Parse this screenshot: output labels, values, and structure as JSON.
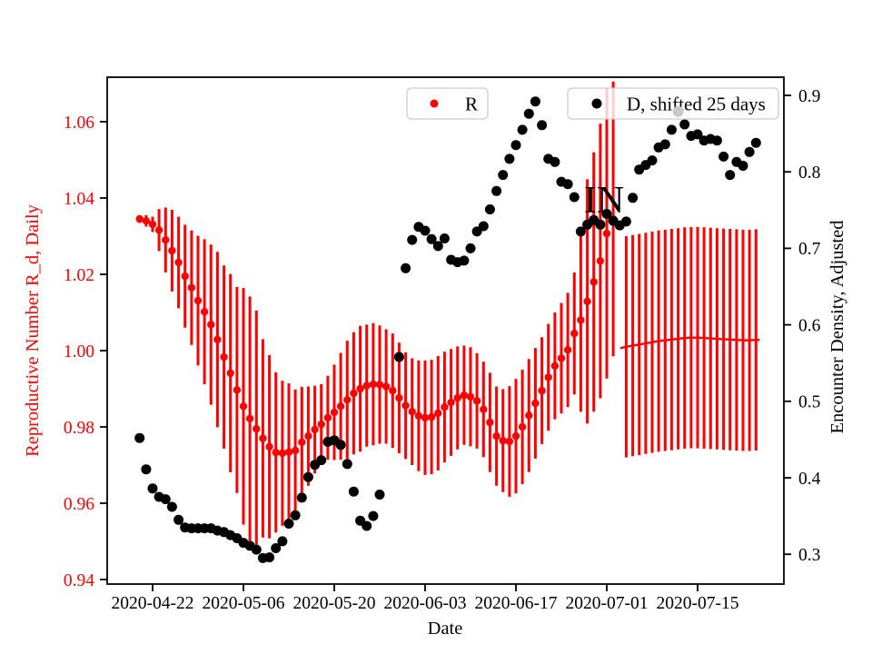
{
  "chart_data": {
    "type": "scatter",
    "title": "",
    "xlabel": "Date",
    "ylabel_left": "Reproductive Number R_d, Daily",
    "ylabel_right": "Encounter Density, Adjusted",
    "axes": {
      "x_tick_labels": [
        "2020-04-22",
        "2020-05-06",
        "2020-05-20",
        "2020-06-03",
        "2020-06-17",
        "2020-07-01",
        "2020-07-15"
      ],
      "left_tick_labels": [
        "0.94",
        "0.96",
        "0.98",
        "1.00",
        "1.02",
        "1.04",
        "1.06"
      ],
      "right_tick_labels": [
        "0.3",
        "0.4",
        "0.5",
        "0.6",
        "0.7",
        "0.8",
        "0.9"
      ],
      "left_range": [
        0.939,
        1.072
      ],
      "right_range": [
        0.261,
        0.924
      ],
      "grid": false
    },
    "colors": {
      "r_series": "#fe0000",
      "d_series": "#000000",
      "faded_point": "#c9c9c9",
      "legend_border": "#cccccc",
      "spine": "#000000"
    },
    "legend": {
      "position": "upper center",
      "entries": [
        {
          "label": "R",
          "marker": "dot",
          "color": "#fe0000"
        },
        {
          "label": "D, shifted 25 days",
          "marker": "dot",
          "color": "#000000"
        }
      ]
    },
    "annotation": {
      "text": "IN",
      "x_date": "2020-07-01",
      "y_left_value": 1.0362
    },
    "series": [
      {
        "name": "R",
        "axis": "left",
        "style": "dots-with-error-bars",
        "start_date": "2020-04-20",
        "values": [
          1.0345,
          1.034,
          1.0331,
          1.0316,
          1.029,
          1.0262,
          1.0231,
          1.0195,
          1.0165,
          1.0131,
          1.0102,
          1.0068,
          1.0029,
          0.9983,
          0.9941,
          0.9897,
          0.9854,
          0.9822,
          0.9795,
          0.977,
          0.9748,
          0.9733,
          0.9731,
          0.9734,
          0.9738,
          0.976,
          0.9776,
          0.9793,
          0.9807,
          0.9824,
          0.9838,
          0.9854,
          0.9871,
          0.9888,
          0.99,
          0.9908,
          0.9912,
          0.9911,
          0.9906,
          0.9895,
          0.9876,
          0.9856,
          0.984,
          0.9829,
          0.9824,
          0.9826,
          0.9836,
          0.9852,
          0.9864,
          0.9876,
          0.9883,
          0.9879,
          0.9868,
          0.9846,
          0.9812,
          0.9776,
          0.9764,
          0.9762,
          0.9776,
          0.98,
          0.983,
          0.9862,
          0.9895,
          0.993,
          0.996,
          0.998,
          1.0002,
          1.0045,
          1.008,
          1.0129,
          1.018,
          1.0235,
          1.0307,
          1.0345
        ],
        "errors": [
          0.001,
          0.0015,
          0.002,
          0.0055,
          0.0085,
          0.0107,
          0.012,
          0.0135,
          0.015,
          0.017,
          0.019,
          0.021,
          0.023,
          0.024,
          0.026,
          0.027,
          0.031,
          0.032,
          0.031,
          0.026,
          0.024,
          0.021,
          0.019,
          0.018,
          0.016,
          0.0145,
          0.013,
          0.0115,
          0.0105,
          0.011,
          0.0125,
          0.014,
          0.0155,
          0.016,
          0.0165,
          0.016,
          0.016,
          0.0155,
          0.015,
          0.015,
          0.0145,
          0.014,
          0.014,
          0.0145,
          0.015,
          0.015,
          0.015,
          0.0145,
          0.014,
          0.0135,
          0.013,
          0.013,
          0.0125,
          0.0125,
          0.013,
          0.013,
          0.0135,
          0.0145,
          0.015,
          0.015,
          0.0148,
          0.0145,
          0.014,
          0.014,
          0.014,
          0.0145,
          0.015,
          0.016,
          0.024,
          0.032,
          0.034,
          0.036,
          0.038,
          0.036
        ]
      },
      {
        "name": "R forecast",
        "axis": "left",
        "style": "line-with-error-bars",
        "start_date": "2020-07-04",
        "values": [
          1.001,
          1.0013,
          1.0016,
          1.0019,
          1.0022,
          1.0025,
          1.0027,
          1.0029,
          1.0031,
          1.0033,
          1.0034,
          1.0034,
          1.0033,
          1.0032,
          1.0031,
          1.003,
          1.0029,
          1.0028,
          1.0027,
          1.0027,
          1.0028
        ],
        "errors": [
          0.029,
          0.029,
          0.029,
          0.029,
          0.029,
          0.029,
          0.029,
          0.029,
          0.029,
          0.029,
          0.029,
          0.029,
          0.029,
          0.029,
          0.029,
          0.029,
          0.029,
          0.029,
          0.029,
          0.029,
          0.029
        ]
      },
      {
        "name": "D, shifted 25 days",
        "axis": "right",
        "style": "dots",
        "start_date": "2020-04-20",
        "values": [
          0.452,
          0.411,
          0.386,
          0.375,
          0.372,
          0.362,
          0.345,
          0.335,
          0.334,
          0.334,
          0.334,
          0.334,
          0.331,
          0.329,
          0.325,
          0.321,
          0.315,
          0.311,
          0.306,
          0.295,
          0.296,
          0.308,
          0.317,
          0.34,
          0.351,
          0.374,
          0.401,
          0.417,
          0.423,
          0.447,
          0.449,
          0.443,
          0.418,
          0.382,
          0.344,
          0.337,
          0.35,
          0.378,
          null,
          null,
          0.558,
          0.674,
          0.711,
          0.728,
          0.723,
          0.712,
          0.703,
          0.713,
          0.685,
          0.682,
          0.684,
          0.7,
          0.722,
          0.729,
          0.751,
          0.775,
          0.796,
          0.817,
          0.835,
          0.855,
          0.876,
          0.892,
          0.861,
          0.817,
          0.813,
          0.787,
          0.784,
          0.767,
          0.722,
          0.731,
          0.737,
          0.731,
          0.745,
          0.736,
          0.73,
          0.735,
          0.766,
          0.803,
          0.809,
          0.815,
          0.832,
          0.836,
          0.855,
          null,
          0.862,
          0.847,
          0.849,
          0.841,
          0.843,
          0.841,
          0.82,
          0.796,
          0.813,
          0.808,
          0.826,
          0.838
        ]
      },
      {
        "name": "faded point",
        "axis": "right",
        "style": "dots",
        "start_date": "2020-07-12",
        "values": [
          0.879
        ]
      }
    ]
  }
}
